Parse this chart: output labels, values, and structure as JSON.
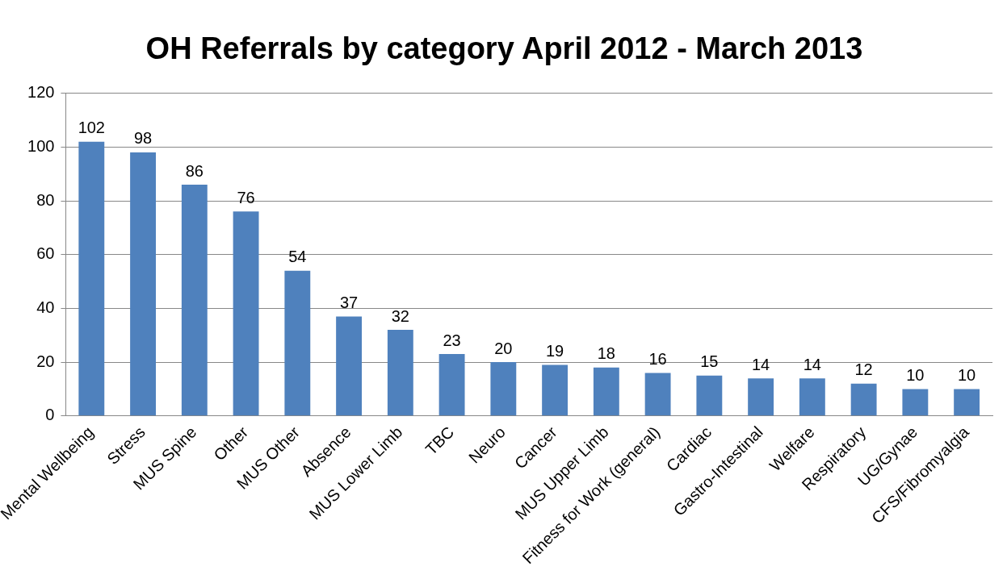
{
  "chart_data": {
    "type": "bar",
    "title": "OH Referrals by category April 2012 - March 2013",
    "categories": [
      "Mental Wellbeing",
      "Stress",
      "MUS Spine",
      "Other",
      "MUS Other",
      "Absence",
      "MUS Lower Limb",
      "TBC",
      "Neuro",
      "Cancer",
      "MUS Upper Limb",
      "Fitness for Work (general)",
      "Cardiac",
      "Gastro-Intestinal",
      "Welfare",
      "Respiratory",
      "UG/Gynae",
      "CFS/Fibromyalgia"
    ],
    "values": [
      102,
      98,
      86,
      76,
      54,
      37,
      32,
      23,
      20,
      19,
      18,
      16,
      15,
      14,
      14,
      12,
      10,
      10
    ],
    "color": "#4f81bd",
    "ylim": [
      0,
      120
    ],
    "yticks": [
      0,
      20,
      40,
      60,
      80,
      100,
      120
    ],
    "grid": "y",
    "data_labels": true
  }
}
